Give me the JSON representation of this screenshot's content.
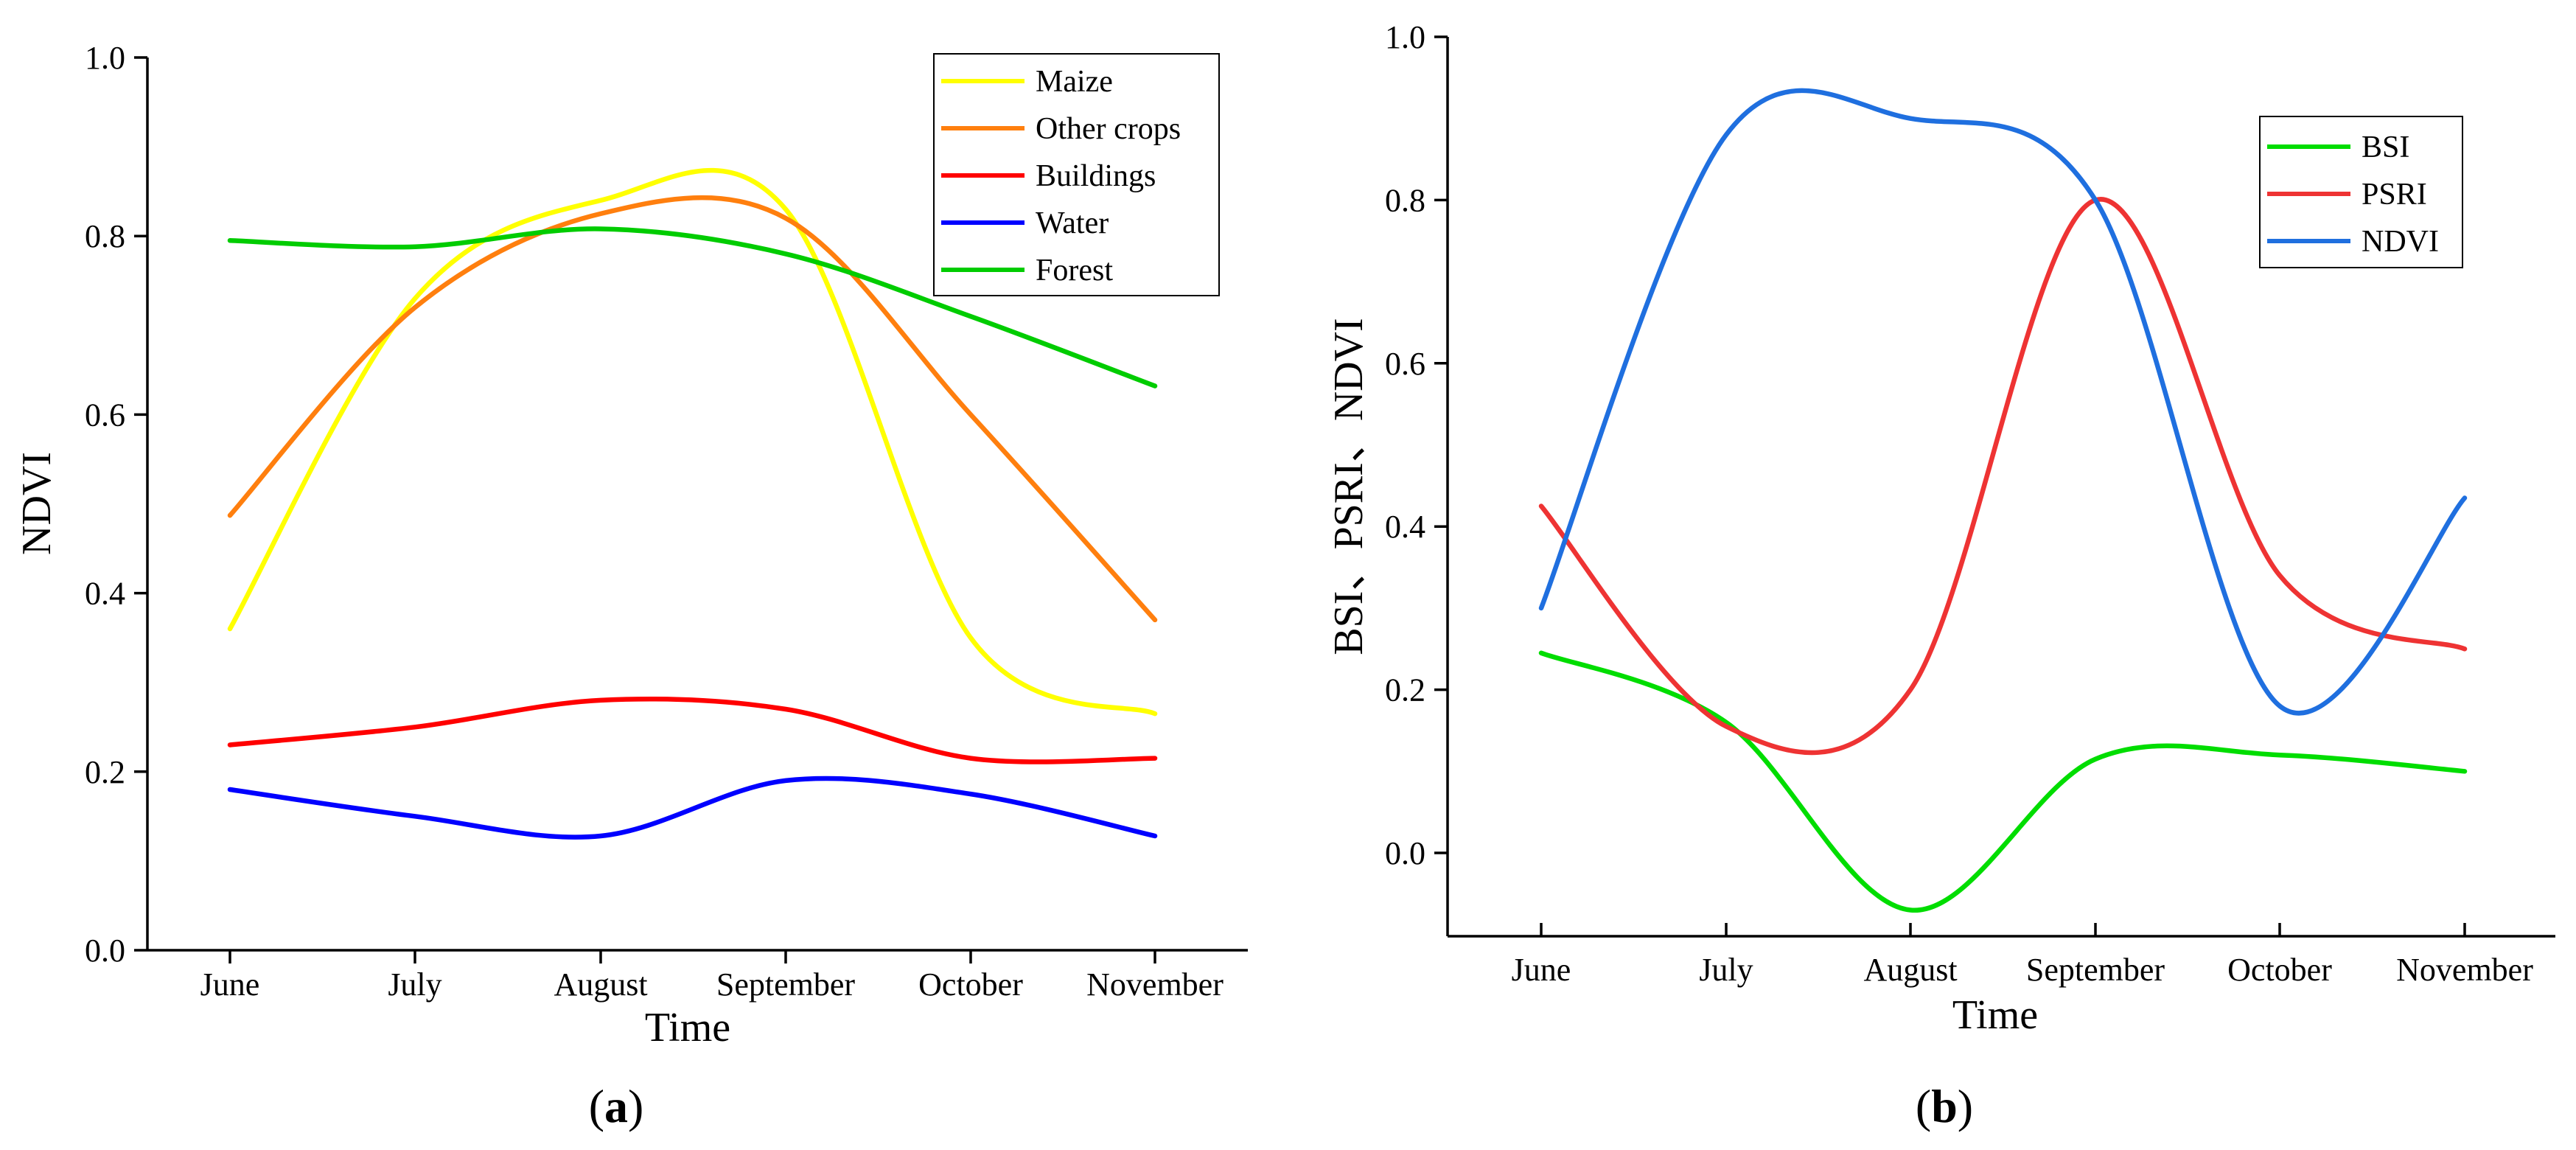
{
  "chart_data": [
    {
      "type": "line",
      "panel_label": {
        "open": "(",
        "letter": "a",
        "close": ")"
      },
      "title": "",
      "xlabel": "Time",
      "ylabel": "NDVI",
      "ylim": [
        0.0,
        1.0
      ],
      "yticks": [
        "0.0",
        "0.2",
        "0.4",
        "0.6",
        "0.8",
        "1.0"
      ],
      "categories": [
        "June",
        "July",
        "August",
        "September",
        "October",
        "November"
      ],
      "legend_position": "top-right",
      "series": [
        {
          "name": "Maize",
          "color": "#ffff00",
          "values": [
            0.36,
            0.73,
            0.84,
            0.83,
            0.35,
            0.265
          ]
        },
        {
          "name": "Other crops",
          "color": "#ff7f0e",
          "values": [
            0.487,
            0.72,
            0.825,
            0.82,
            0.6,
            0.37
          ]
        },
        {
          "name": "Buildings",
          "color": "#ff0000",
          "values": [
            0.23,
            0.25,
            0.28,
            0.27,
            0.215,
            0.215
          ]
        },
        {
          "name": "Water",
          "color": "#0000ff",
          "values": [
            0.18,
            0.15,
            0.128,
            0.19,
            0.175,
            0.128
          ]
        },
        {
          "name": "Forest",
          "color": "#00cc00",
          "values": [
            0.795,
            0.788,
            0.808,
            0.78,
            0.71,
            0.632
          ]
        }
      ]
    },
    {
      "type": "line",
      "panel_label": {
        "open": "(",
        "letter": "b",
        "close": ")"
      },
      "title": "",
      "xlabel": "Time",
      "ylabel": "BSI、PSRI、NDVI",
      "ylim": [
        -0.1,
        1.0
      ],
      "yticks": [
        "0.0",
        "0.2",
        "0.4",
        "0.6",
        "0.8",
        "1.0"
      ],
      "categories": [
        "June",
        "July",
        "August",
        "September",
        "October",
        "November"
      ],
      "legend_position": "top-right",
      "series": [
        {
          "name": "BSI",
          "color": "#00dd00",
          "values": [
            0.245,
            0.16,
            -0.07,
            0.115,
            0.12,
            0.1
          ]
        },
        {
          "name": "PSRI",
          "color": "#ee3333",
          "values": [
            0.425,
            0.155,
            0.2,
            0.8,
            0.34,
            0.25
          ]
        },
        {
          "name": "NDVI",
          "color": "#1f6fdf",
          "values": [
            0.3,
            0.88,
            0.9,
            0.8,
            0.18,
            0.435
          ]
        }
      ]
    }
  ]
}
